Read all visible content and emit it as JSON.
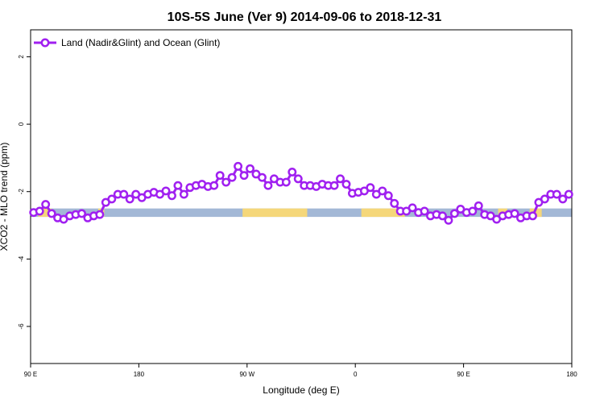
{
  "chart_data": {
    "type": "line",
    "title": "10S-5S June (Ver 9)   2014-09-06 to 2018-12-31",
    "xlabel": "Longitude (deg E)",
    "ylabel": "XCO2 - MLO trend (ppm)",
    "xlim": [
      90,
      450
    ],
    "ylim": [
      -7.1,
      2.8
    ],
    "x_ticks": [
      {
        "value": 90,
        "label": "90 E"
      },
      {
        "value": 162,
        "label": "180"
      },
      {
        "value": 234,
        "label": "90 W"
      },
      {
        "value": 306,
        "label": "0"
      },
      {
        "value": 378,
        "label": "90 E"
      },
      {
        "value": 450,
        "label": "180"
      }
    ],
    "y_ticks": [
      {
        "value": 2,
        "label": "2"
      },
      {
        "value": 0,
        "label": "0"
      },
      {
        "value": -2,
        "label": "-2"
      },
      {
        "value": -4,
        "label": "-4"
      },
      {
        "value": -6,
        "label": "-6"
      }
    ],
    "grid": false,
    "legend_position": "top-left",
    "surface_band": {
      "y_range": [
        -2.75,
        -2.5
      ],
      "ocean_color": "#a3b8d6",
      "land_color": "#f5d77a",
      "land_segments": [
        [
          95,
          104
        ],
        [
          135,
          139
        ],
        [
          231,
          274
        ],
        [
          310,
          339
        ],
        [
          401,
          407
        ],
        [
          422,
          430
        ]
      ]
    },
    "series": [
      {
        "name": "Land (Nadir&Glint) and Ocean (Glint)",
        "color": "#a020f0",
        "x": [
          92,
          96,
          100,
          104,
          108,
          112,
          116,
          120,
          124,
          128,
          132,
          136,
          140,
          144,
          148,
          152,
          156,
          160,
          164,
          168,
          172,
          176,
          180,
          184,
          188,
          192,
          196,
          200,
          204,
          208,
          212,
          216,
          220,
          224,
          228,
          232,
          236,
          240,
          244,
          248,
          252,
          256,
          260,
          264,
          268,
          272,
          276,
          280,
          284,
          288,
          292,
          296,
          300,
          304,
          308,
          312,
          316,
          320,
          324,
          328,
          332,
          336,
          340,
          344,
          348,
          352,
          356,
          360,
          364,
          368,
          372,
          376,
          380,
          384,
          388,
          392,
          396,
          400,
          404,
          408,
          412,
          416,
          420,
          424,
          428,
          432,
          436,
          440,
          444,
          448
        ],
        "y": [
          -2.62,
          -2.58,
          -2.38,
          -2.65,
          -2.78,
          -2.82,
          -2.72,
          -2.68,
          -2.65,
          -2.78,
          -2.72,
          -2.68,
          -2.32,
          -2.22,
          -2.08,
          -2.08,
          -2.22,
          -2.08,
          -2.18,
          -2.08,
          -2.02,
          -2.08,
          -1.98,
          -2.12,
          -1.82,
          -2.08,
          -1.88,
          -1.82,
          -1.78,
          -1.85,
          -1.82,
          -1.52,
          -1.72,
          -1.58,
          -1.25,
          -1.52,
          -1.32,
          -1.48,
          -1.58,
          -1.82,
          -1.62,
          -1.72,
          -1.72,
          -1.42,
          -1.62,
          -1.82,
          -1.82,
          -1.85,
          -1.78,
          -1.82,
          -1.82,
          -1.62,
          -1.78,
          -2.05,
          -2.02,
          -1.98,
          -1.88,
          -2.08,
          -1.98,
          -2.12,
          -2.35,
          -2.58,
          -2.58,
          -2.48,
          -2.62,
          -2.58,
          -2.72,
          -2.68,
          -2.72,
          -2.85,
          -2.65,
          -2.52,
          -2.62,
          -2.58,
          -2.42,
          -2.68,
          -2.72,
          -2.82,
          -2.72,
          -2.68,
          -2.65,
          -2.78,
          -2.72,
          -2.72,
          -2.32,
          -2.22,
          -2.08,
          -2.08,
          -2.22,
          -2.08
        ]
      }
    ]
  }
}
